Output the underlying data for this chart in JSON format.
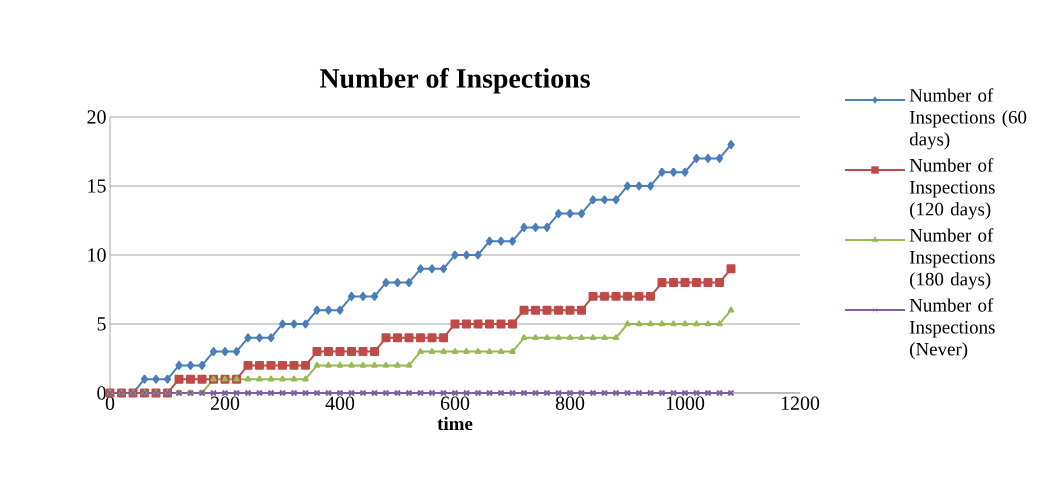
{
  "chart_data": {
    "type": "line",
    "title": "Number of Inspections",
    "xlabel": "time",
    "x": [
      0,
      20,
      40,
      60,
      80,
      100,
      120,
      140,
      160,
      180,
      200,
      220,
      240,
      260,
      280,
      300,
      320,
      340,
      360,
      380,
      400,
      420,
      440,
      460,
      480,
      500,
      520,
      540,
      560,
      580,
      600,
      620,
      640,
      660,
      680,
      700,
      720,
      740,
      760,
      780,
      800,
      820,
      840,
      860,
      880,
      900,
      920,
      940,
      960,
      980,
      1000,
      1020,
      1040,
      1060,
      1080
    ],
    "series": [
      {
        "name": "Number of Inspections (60 days)",
        "color": "#4a7ebb",
        "marker": "diamond",
        "values": [
          0,
          0,
          0,
          1,
          1,
          1,
          2,
          2,
          2,
          3,
          3,
          3,
          4,
          4,
          4,
          5,
          5,
          5,
          6,
          6,
          6,
          7,
          7,
          7,
          8,
          8,
          8,
          9,
          9,
          9,
          10,
          10,
          10,
          11,
          11,
          11,
          12,
          12,
          12,
          13,
          13,
          13,
          14,
          14,
          14,
          15,
          15,
          15,
          16,
          16,
          16,
          17,
          17,
          17,
          18
        ]
      },
      {
        "name": "Number of Inspections (120 days)",
        "color": "#be4b48",
        "marker": "square",
        "values": [
          0,
          0,
          0,
          0,
          0,
          0,
          1,
          1,
          1,
          1,
          1,
          1,
          2,
          2,
          2,
          2,
          2,
          2,
          3,
          3,
          3,
          3,
          3,
          3,
          4,
          4,
          4,
          4,
          4,
          4,
          5,
          5,
          5,
          5,
          5,
          5,
          6,
          6,
          6,
          6,
          6,
          6,
          7,
          7,
          7,
          7,
          7,
          7,
          8,
          8,
          8,
          8,
          8,
          8,
          9
        ]
      },
      {
        "name": "Number of Inspections (180 days)",
        "color": "#98b954",
        "marker": "triangle",
        "values": [
          0,
          0,
          0,
          0,
          0,
          0,
          0,
          0,
          0,
          1,
          1,
          1,
          1,
          1,
          1,
          1,
          1,
          1,
          2,
          2,
          2,
          2,
          2,
          2,
          2,
          2,
          2,
          3,
          3,
          3,
          3,
          3,
          3,
          3,
          3,
          3,
          4,
          4,
          4,
          4,
          4,
          4,
          4,
          4,
          4,
          5,
          5,
          5,
          5,
          5,
          5,
          5,
          5,
          5,
          6
        ]
      },
      {
        "name": "Number of Inspections (Never)",
        "color": "#7d60a0",
        "marker": "cross",
        "values": [
          0,
          0,
          0,
          0,
          0,
          0,
          0,
          0,
          0,
          0,
          0,
          0,
          0,
          0,
          0,
          0,
          0,
          0,
          0,
          0,
          0,
          0,
          0,
          0,
          0,
          0,
          0,
          0,
          0,
          0,
          0,
          0,
          0,
          0,
          0,
          0,
          0,
          0,
          0,
          0,
          0,
          0,
          0,
          0,
          0,
          0,
          0,
          0,
          0,
          0,
          0,
          0,
          0,
          0,
          0
        ]
      }
    ],
    "xlim": [
      0,
      1200
    ],
    "xticks": [
      0,
      200,
      400,
      600,
      800,
      1000,
      1200
    ],
    "ylim": [
      0,
      20
    ],
    "yticks": [
      0,
      5,
      10,
      15,
      20
    ],
    "grid": "y",
    "legend": "right",
    "line_style": "solid"
  }
}
